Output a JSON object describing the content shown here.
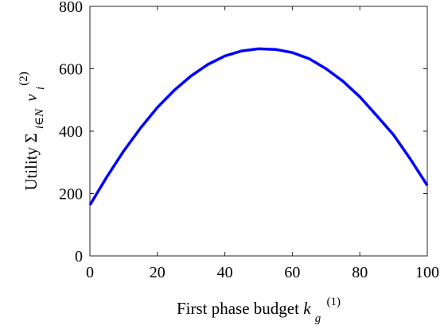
{
  "chart_data": {
    "type": "line",
    "title": "",
    "xlabel": {
      "text": "First phase budget ",
      "var": "k",
      "sub": "g",
      "sup": "(1)"
    },
    "ylabel": {
      "text": "Utility ",
      "sum": "Σ",
      "sum_sub": "i∈N",
      "var": "v",
      "var_sub": "i",
      "sup": "(2)"
    },
    "xlim": [
      0,
      100
    ],
    "ylim": [
      0,
      800
    ],
    "xticks": [
      0,
      20,
      40,
      60,
      80,
      100
    ],
    "yticks": [
      0,
      200,
      400,
      600,
      800
    ],
    "grid": false,
    "line_color": "#0000ff",
    "series": [
      {
        "x": [
          0,
          5,
          10,
          15,
          20,
          25,
          30,
          35,
          40,
          45,
          50,
          55,
          60,
          65,
          70,
          75,
          80,
          85,
          90,
          95,
          100
        ],
        "y": [
          163,
          253,
          336,
          410,
          476,
          531,
          577,
          614,
          641,
          657,
          664,
          662,
          652,
          632,
          600,
          560,
          510,
          450,
          388,
          310,
          226
        ]
      }
    ]
  }
}
